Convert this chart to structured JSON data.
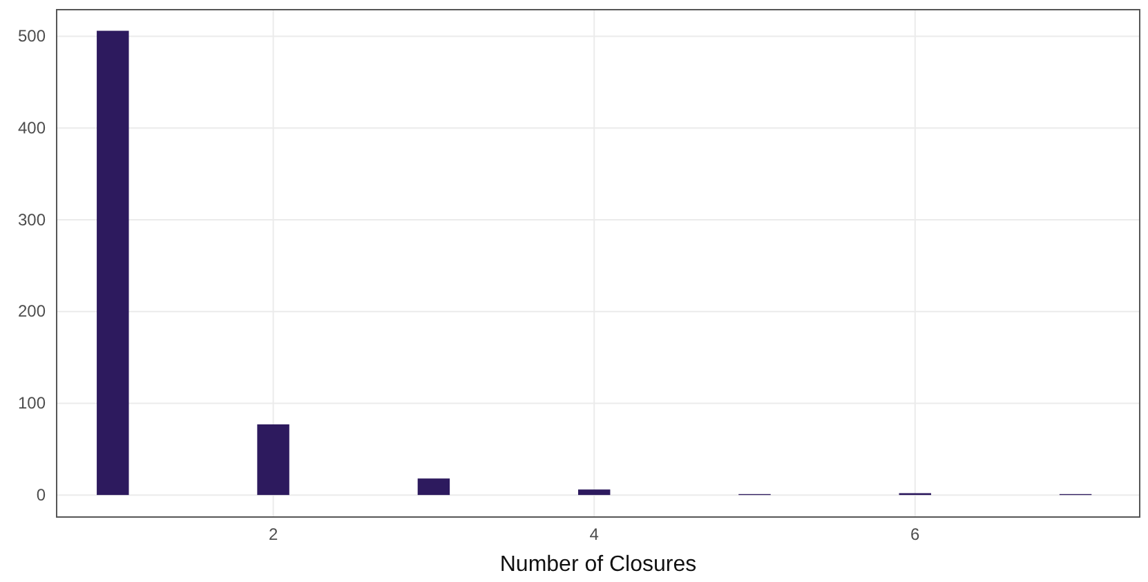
{
  "chart_data": {
    "type": "histogram",
    "xlabel": "Number of Closures",
    "bins": [
      0.9,
      1.1,
      1.3,
      1.5,
      1.7,
      1.9,
      2.1,
      2.3,
      2.5,
      2.7,
      2.9,
      3.1,
      3.3,
      3.5,
      3.7,
      3.9,
      4.1,
      4.3,
      4.5,
      4.7,
      4.9,
      5.1,
      5.3,
      5.5,
      5.7,
      5.9,
      6.1,
      6.3,
      6.5,
      6.7,
      6.9,
      7.1
    ],
    "values": [
      506,
      0,
      0,
      0,
      0,
      77,
      0,
      0,
      0,
      0,
      18,
      0,
      0,
      0,
      0,
      6,
      0,
      0,
      0,
      0,
      1,
      0,
      0,
      0,
      0,
      2,
      0,
      0,
      0,
      0,
      1
    ],
    "color": "#2d1a5e",
    "xlim": [
      0.65,
      7.4
    ],
    "xticks": [
      2,
      4,
      6
    ],
    "ylim": [
      -24,
      529
    ],
    "yticks": [
      0,
      100,
      200,
      300,
      400,
      500
    ],
    "grid": true
  }
}
